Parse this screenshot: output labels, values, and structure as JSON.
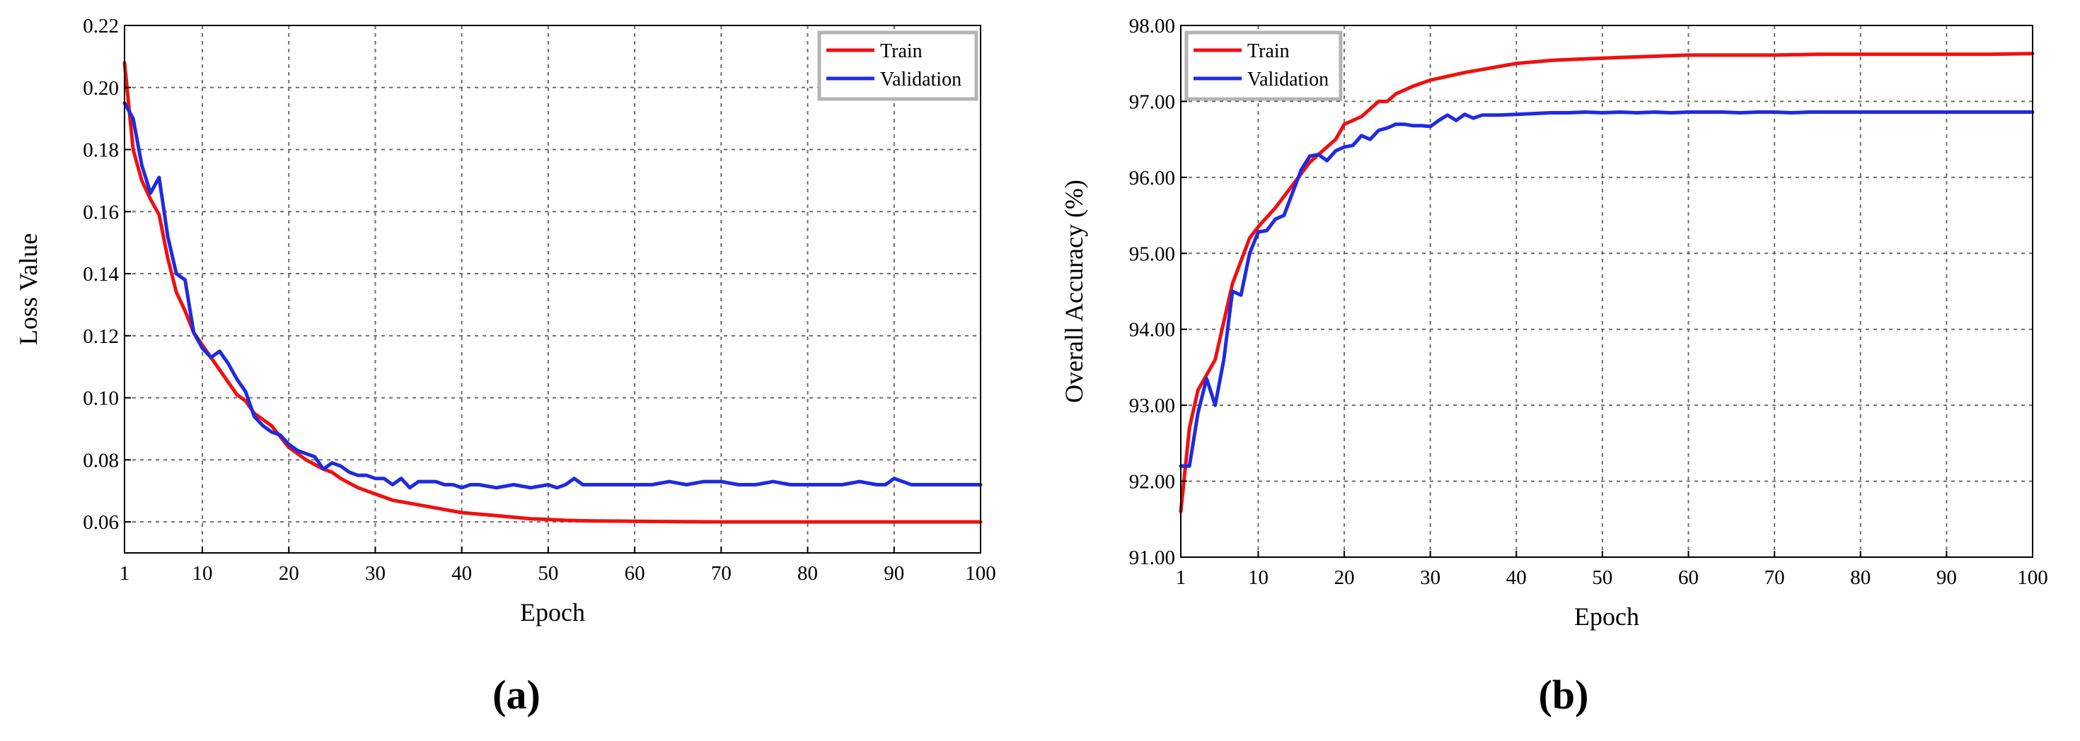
{
  "chart_data": [
    {
      "type": "line",
      "panel_label": "(a)",
      "xlabel": "Epoch",
      "ylabel": "Loss Value",
      "xlim": [
        1,
        100
      ],
      "ylim": [
        0.05,
        0.22
      ],
      "xticks": [
        1,
        10,
        20,
        30,
        40,
        50,
        60,
        70,
        80,
        90,
        100
      ],
      "xtick_labels": [
        "1",
        "10",
        "20",
        "30",
        "40",
        "50",
        "60",
        "70",
        "80",
        "90",
        "100"
      ],
      "yticks": [
        0.06,
        0.08,
        0.1,
        0.12,
        0.14,
        0.16,
        0.18,
        0.2,
        0.22
      ],
      "ytick_labels": [
        "0.06",
        "0.08",
        "0.10",
        "0.12",
        "0.14",
        "0.16",
        "0.18",
        "0.20",
        "0.22"
      ],
      "grid": true,
      "legend_position": "top-right",
      "series": [
        {
          "name": "Train",
          "color": "#ee1111",
          "x": [
            1,
            2,
            3,
            4,
            5,
            6,
            7,
            8,
            9,
            10,
            12,
            14,
            15,
            16,
            18,
            20,
            22,
            24,
            25,
            26,
            28,
            30,
            32,
            34,
            36,
            38,
            40,
            42,
            44,
            46,
            48,
            50,
            52,
            55,
            60,
            65,
            70,
            75,
            80,
            85,
            90,
            95,
            100
          ],
          "y": [
            0.208,
            0.18,
            0.17,
            0.164,
            0.159,
            0.145,
            0.134,
            0.128,
            0.121,
            0.117,
            0.109,
            0.101,
            0.099,
            0.095,
            0.091,
            0.084,
            0.08,
            0.077,
            0.076,
            0.074,
            0.071,
            0.069,
            0.067,
            0.066,
            0.065,
            0.064,
            0.063,
            0.0625,
            0.062,
            0.0615,
            0.061,
            0.0608,
            0.0605,
            0.0603,
            0.0602,
            0.0601,
            0.06,
            0.06,
            0.06,
            0.06,
            0.06,
            0.06,
            0.06
          ]
        },
        {
          "name": "Validation",
          "color": "#1f2be0",
          "x": [
            1,
            2,
            3,
            4,
            5,
            6,
            7,
            8,
            9,
            10,
            11,
            12,
            13,
            14,
            15,
            16,
            17,
            18,
            19,
            20,
            21,
            22,
            23,
            24,
            25,
            26,
            27,
            28,
            29,
            30,
            31,
            32,
            33,
            34,
            35,
            36,
            37,
            38,
            39,
            40,
            41,
            42,
            44,
            46,
            48,
            50,
            51,
            52,
            53,
            54,
            56,
            58,
            60,
            62,
            64,
            66,
            68,
            70,
            72,
            74,
            76,
            78,
            80,
            82,
            84,
            86,
            88,
            89,
            90,
            92,
            94,
            96,
            98,
            100
          ],
          "y": [
            0.195,
            0.19,
            0.175,
            0.166,
            0.171,
            0.152,
            0.14,
            0.138,
            0.121,
            0.116,
            0.113,
            0.115,
            0.111,
            0.106,
            0.102,
            0.094,
            0.091,
            0.089,
            0.088,
            0.085,
            0.083,
            0.082,
            0.081,
            0.077,
            0.079,
            0.078,
            0.076,
            0.075,
            0.075,
            0.074,
            0.074,
            0.072,
            0.074,
            0.071,
            0.073,
            0.073,
            0.073,
            0.072,
            0.072,
            0.071,
            0.072,
            0.072,
            0.071,
            0.072,
            0.071,
            0.072,
            0.071,
            0.072,
            0.074,
            0.072,
            0.072,
            0.072,
            0.072,
            0.072,
            0.073,
            0.072,
            0.073,
            0.073,
            0.072,
            0.072,
            0.073,
            0.072,
            0.072,
            0.072,
            0.072,
            0.073,
            0.072,
            0.072,
            0.074,
            0.072,
            0.072,
            0.072,
            0.072,
            0.072
          ]
        }
      ]
    },
    {
      "type": "line",
      "panel_label": "(b)",
      "xlabel": "Epoch",
      "ylabel": "Overall Accuracy (%)",
      "xlim": [
        1,
        100
      ],
      "ylim": [
        91.0,
        98.0
      ],
      "xticks": [
        1,
        10,
        20,
        30,
        40,
        50,
        60,
        70,
        80,
        90,
        100
      ],
      "xtick_labels": [
        "1",
        "10",
        "20",
        "30",
        "40",
        "50",
        "60",
        "70",
        "80",
        "90",
        "100"
      ],
      "yticks": [
        91.0,
        92.0,
        93.0,
        94.0,
        95.0,
        96.0,
        97.0,
        98.0
      ],
      "ytick_labels": [
        "91.00",
        "92.00",
        "93.00",
        "94.00",
        "95.00",
        "96.00",
        "97.00",
        "98.00"
      ],
      "grid": true,
      "legend_position": "top-left",
      "series": [
        {
          "name": "Train",
          "color": "#ee1111",
          "x": [
            1,
            2,
            3,
            4,
            5,
            6,
            7,
            8,
            9,
            10,
            12,
            14,
            16,
            18,
            19,
            20,
            22,
            24,
            25,
            26,
            28,
            30,
            32,
            34,
            36,
            38,
            40,
            42,
            44,
            46,
            48,
            50,
            55,
            60,
            65,
            70,
            75,
            80,
            85,
            90,
            95,
            100
          ],
          "y": [
            91.6,
            92.7,
            93.2,
            93.4,
            93.6,
            94.1,
            94.6,
            94.9,
            95.2,
            95.35,
            95.6,
            95.9,
            96.2,
            96.4,
            96.5,
            96.7,
            96.8,
            97.0,
            97.0,
            97.1,
            97.2,
            97.28,
            97.33,
            97.38,
            97.42,
            97.46,
            97.5,
            97.52,
            97.54,
            97.55,
            97.56,
            97.57,
            97.59,
            97.61,
            97.61,
            97.61,
            97.62,
            97.62,
            97.62,
            97.62,
            97.62,
            97.63
          ]
        },
        {
          "name": "Validation",
          "color": "#1f2be0",
          "x": [
            1,
            2,
            3,
            4,
            5,
            6,
            7,
            8,
            9,
            10,
            11,
            12,
            13,
            14,
            15,
            16,
            17,
            18,
            19,
            20,
            21,
            22,
            23,
            24,
            25,
            26,
            27,
            28,
            29,
            30,
            31,
            32,
            33,
            34,
            35,
            36,
            38,
            40,
            42,
            44,
            46,
            48,
            50,
            52,
            54,
            56,
            58,
            60,
            62,
            64,
            66,
            68,
            70,
            72,
            74,
            76,
            78,
            80,
            82,
            84,
            86,
            88,
            90,
            92,
            94,
            96,
            98,
            100
          ],
          "y": [
            92.2,
            92.2,
            92.9,
            93.35,
            93.0,
            93.6,
            94.5,
            94.45,
            95.0,
            95.28,
            95.3,
            95.45,
            95.5,
            95.8,
            96.1,
            96.28,
            96.3,
            96.22,
            96.35,
            96.4,
            96.42,
            96.55,
            96.5,
            96.62,
            96.65,
            96.7,
            96.7,
            96.68,
            96.68,
            96.67,
            96.75,
            96.82,
            96.75,
            96.83,
            96.78,
            96.82,
            96.82,
            96.83,
            96.84,
            96.85,
            96.85,
            96.86,
            96.85,
            96.86,
            96.85,
            96.86,
            96.85,
            96.86,
            96.86,
            96.86,
            96.85,
            96.86,
            96.86,
            96.85,
            96.86,
            96.86,
            96.86,
            96.86,
            96.86,
            96.86,
            96.86,
            96.86,
            96.86,
            96.86,
            96.86,
            96.86,
            96.86,
            96.86
          ]
        }
      ]
    }
  ]
}
